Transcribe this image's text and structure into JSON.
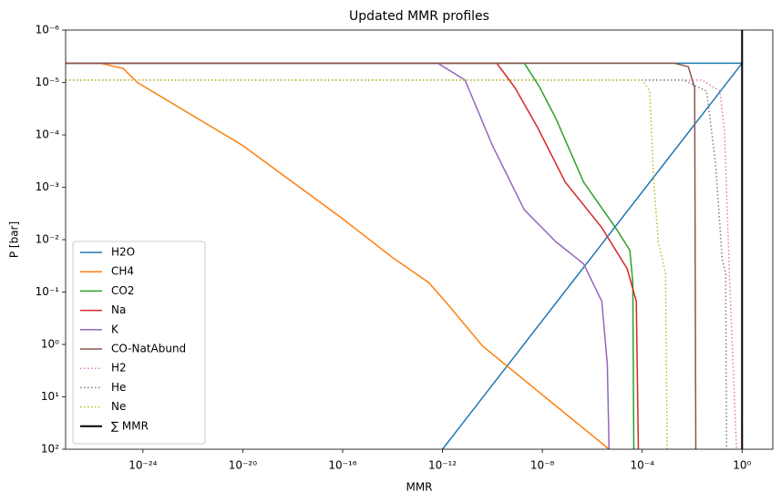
{
  "chart_data": {
    "type": "line",
    "title": "Updated MMR profiles",
    "xlabel": "MMR",
    "ylabel": "P [bar]",
    "xscale": "log",
    "yscale": "log",
    "xlim": [
      8e-28,
      17
    ],
    "ylim": [
      100,
      1e-06
    ],
    "xticks": [
      {
        "value": 1e-24,
        "label": "10⁻²⁴"
      },
      {
        "value": 1e-20,
        "label": "10⁻²⁰"
      },
      {
        "value": 1e-16,
        "label": "10⁻¹⁶"
      },
      {
        "value": 1e-12,
        "label": "10⁻¹²"
      },
      {
        "value": 1e-08,
        "label": "10⁻⁸"
      },
      {
        "value": 0.0001,
        "label": "10⁻⁴"
      },
      {
        "value": 1,
        "label": "10⁰"
      }
    ],
    "yticks": [
      {
        "value": 1e-06,
        "label": "10⁻⁶"
      },
      {
        "value": 1e-05,
        "label": "10⁻⁵"
      },
      {
        "value": 0.0001,
        "label": "10⁻⁴"
      },
      {
        "value": 0.001,
        "label": "10⁻³"
      },
      {
        "value": 0.01,
        "label": "10⁻²"
      },
      {
        "value": 0.1,
        "label": "10⁻¹"
      },
      {
        "value": 1,
        "label": "10⁰"
      },
      {
        "value": 10,
        "label": "10¹"
      },
      {
        "value": 100,
        "label": "10²"
      }
    ],
    "legend": "lower left",
    "series": [
      {
        "name": "H2O",
        "color": "#1f77b4",
        "linestyle": "solid",
        "x": [
          8e-28,
          1,
          1e-12
        ],
        "y": [
          4.3e-06,
          4.3e-06,
          100
        ]
      },
      {
        "name": "CH4",
        "color": "#ff7f0e",
        "linestyle": "solid",
        "x": [
          8e-28,
          2e-26,
          1.6e-25,
          6e-25,
          1e-20,
          1e-16,
          1e-14,
          2.8e-13,
          1.6e-12,
          4e-11,
          4.7e-06
        ],
        "y": [
          4.3e-06,
          4.3e-06,
          5.4e-06,
          1e-05,
          0.00016,
          0.004,
          0.022,
          0.066,
          0.17,
          1.07,
          100
        ]
      },
      {
        "name": "CO2",
        "color": "#2ca02c",
        "linestyle": "solid",
        "x": [
          8e-28,
          1.9e-09,
          8e-09,
          3.5e-08,
          4.5e-07,
          8.5e-06,
          3.2e-05,
          4.2e-05,
          4.6e-05
        ],
        "y": [
          4.3e-06,
          4.3e-06,
          1.26e-05,
          4.9e-05,
          0.0008,
          0.0059,
          0.016,
          0.066,
          100
        ]
      },
      {
        "name": "Na",
        "color": "#d62728",
        "linestyle": "solid",
        "x": [
          8e-28,
          1.5e-10,
          8e-10,
          6.6e-09,
          8.3e-08,
          2.4e-06,
          2.5e-05,
          5.8e-05,
          7e-05
        ],
        "y": [
          4.3e-06,
          4.3e-06,
          1.26e-05,
          7.4e-05,
          0.0008,
          0.0059,
          0.036,
          0.15,
          100
        ]
      },
      {
        "name": "K",
        "color": "#9467bd",
        "linestyle": "solid",
        "x": [
          8e-28,
          6.5e-13,
          8e-12,
          1e-10,
          1.9e-09,
          3.5e-08,
          4.5e-07,
          2.4e-06,
          4e-06,
          4.7e-06
        ],
        "y": [
          4.3e-06,
          4.3e-06,
          9e-06,
          0.00016,
          0.0027,
          0.011,
          0.029,
          0.15,
          2.4,
          100
        ]
      },
      {
        "name": "CO-NatAbund",
        "color": "#8c564b",
        "linestyle": "solid",
        "x": [
          8e-28,
          0.002,
          0.007,
          0.0126,
          0.014
        ],
        "y": [
          4.3e-06,
          4.3e-06,
          5e-06,
          1.26e-05,
          100
        ]
      },
      {
        "name": "H2",
        "color": "#e377c2",
        "linestyle": "dotted",
        "x": [
          8e-28,
          0.025,
          0.13,
          0.2,
          0.31,
          0.6
        ],
        "y": [
          9e-06,
          9e-06,
          1.46e-05,
          9.3e-05,
          0.044,
          100
        ]
      },
      {
        "name": "He",
        "color": "#7f7f7f",
        "linestyle": "dotted",
        "x": [
          8e-28,
          0.0046,
          0.038,
          0.087,
          0.16,
          0.22,
          0.24
        ],
        "y": [
          9e-06,
          9e-06,
          1.46e-05,
          0.00036,
          0.024,
          0.044,
          100
        ]
      },
      {
        "name": "Ne",
        "color": "#bcbd22",
        "linestyle": "dotted",
        "x": [
          8e-28,
          0.0001,
          0.0002,
          0.00029,
          0.00044,
          0.00086,
          0.001
        ],
        "y": [
          9e-06,
          9e-06,
          1.46e-05,
          0.0008,
          0.011,
          0.044,
          100
        ]
      },
      {
        "name": "∑ MMR",
        "color": "#000000",
        "linestyle": "bold",
        "x": [
          1,
          1
        ],
        "y": [
          1e-06,
          100
        ]
      }
    ]
  }
}
